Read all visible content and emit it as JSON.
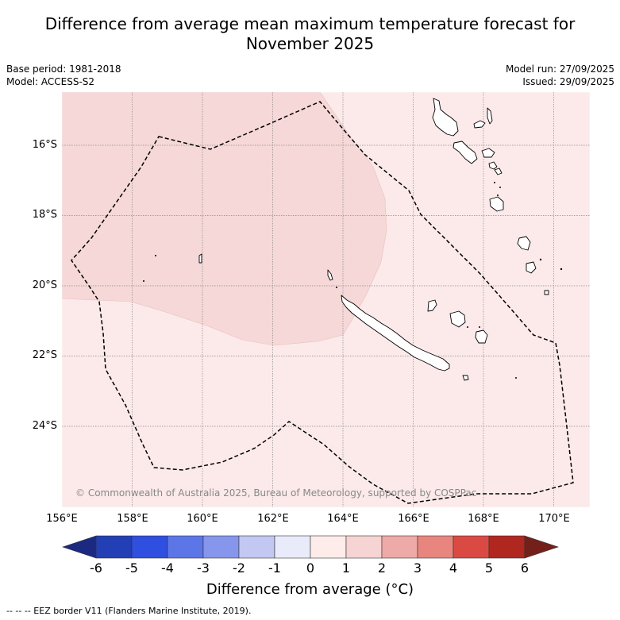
{
  "title_line1": "Difference from average mean maximum temperature forecast for",
  "title_line2": "November 2025",
  "base_period": "Base period: 1981-2018",
  "model": "Model: ACCESS-S2",
  "model_run": "Model run: 27/09/2025",
  "issued": "Issued: 29/09/2025",
  "copyright": "© Commonwealth of Australia 2025, Bureau of Meteorology, supported by COSPPac",
  "lat_labels": [
    "16°S",
    "18°S",
    "20°S",
    "22°S",
    "24°S"
  ],
  "lon_labels": [
    "156°E",
    "158°E",
    "160°E",
    "162°E",
    "164°E",
    "166°E",
    "168°E",
    "170°E"
  ],
  "colorbar": {
    "ticks": [
      "-6",
      "-5",
      "-4",
      "-3",
      "-2",
      "-1",
      "0",
      "1",
      "2",
      "3",
      "4",
      "5",
      "6"
    ],
    "colors": [
      "#1b2a80",
      "#233fb5",
      "#2e4fe0",
      "#5c76e8",
      "#8596ec",
      "#c2c8f2",
      "#e9ebfb",
      "#fdecea",
      "#f6d4d3",
      "#eeaaa6",
      "#e8857f",
      "#db4a42",
      "#b0271f",
      "#74201a"
    ],
    "label": "Difference from average (°C)"
  },
  "footnote": "--  --  -- EEZ border V11 (Flanders Marine Institute, 2019).",
  "map_colors": {
    "ocean": "#fbeae9",
    "anomaly_1_2": "#f5d8d7",
    "grid": "#8a8a8a"
  }
}
